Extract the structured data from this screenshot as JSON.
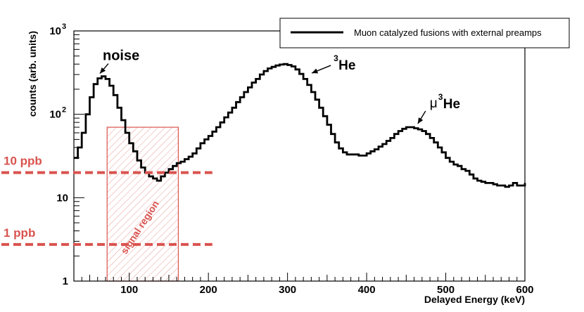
{
  "chart_data": {
    "type": "line",
    "xlabel": "Delayed Energy (keV)",
    "ylabel": "counts (arb. units)",
    "xlim": [
      30,
      600
    ],
    "ylim": [
      1,
      1000
    ],
    "yscale": "log",
    "x_ticks": [
      100,
      200,
      300,
      400,
      500,
      600
    ],
    "y_ticks": [
      {
        "value": 1,
        "label": "1"
      },
      {
        "value": 10,
        "label": "10"
      },
      {
        "value": 100,
        "label": "10",
        "sup": "2"
      },
      {
        "value": 1000,
        "label": "10",
        "sup": "3"
      }
    ],
    "legend": {
      "position": "top-right",
      "entries": [
        {
          "label": "Muon catalyzed fusions with external preamps",
          "color": "#000000"
        }
      ]
    },
    "series": [
      {
        "name": "Muon catalyzed fusions with external preamps",
        "color": "#000000",
        "style": "step",
        "points": [
          [
            30,
            30
          ],
          [
            35,
            40
          ],
          [
            40,
            60
          ],
          [
            45,
            100
          ],
          [
            50,
            160
          ],
          [
            55,
            230
          ],
          [
            60,
            270
          ],
          [
            65,
            285
          ],
          [
            70,
            265
          ],
          [
            75,
            220
          ],
          [
            80,
            170
          ],
          [
            85,
            120
          ],
          [
            90,
            85
          ],
          [
            95,
            60
          ],
          [
            100,
            45
          ],
          [
            105,
            36
          ],
          [
            110,
            28
          ],
          [
            115,
            23
          ],
          [
            120,
            20
          ],
          [
            125,
            18
          ],
          [
            130,
            17
          ],
          [
            135,
            16
          ],
          [
            140,
            18
          ],
          [
            145,
            20
          ],
          [
            150,
            22
          ],
          [
            155,
            24
          ],
          [
            160,
            26
          ],
          [
            165,
            27
          ],
          [
            170,
            29
          ],
          [
            175,
            31
          ],
          [
            180,
            34
          ],
          [
            185,
            39
          ],
          [
            190,
            45
          ],
          [
            195,
            50
          ],
          [
            200,
            55
          ],
          [
            205,
            62
          ],
          [
            210,
            70
          ],
          [
            215,
            80
          ],
          [
            220,
            92
          ],
          [
            225,
            105
          ],
          [
            230,
            120
          ],
          [
            235,
            140
          ],
          [
            240,
            160
          ],
          [
            245,
            185
          ],
          [
            250,
            210
          ],
          [
            255,
            240
          ],
          [
            260,
            265
          ],
          [
            265,
            300
          ],
          [
            270,
            330
          ],
          [
            275,
            355
          ],
          [
            280,
            370
          ],
          [
            285,
            385
          ],
          [
            290,
            395
          ],
          [
            295,
            400
          ],
          [
            300,
            390
          ],
          [
            305,
            375
          ],
          [
            310,
            345
          ],
          [
            315,
            305
          ],
          [
            320,
            265
          ],
          [
            325,
            225
          ],
          [
            330,
            185
          ],
          [
            335,
            150
          ],
          [
            340,
            120
          ],
          [
            345,
            95
          ],
          [
            350,
            75
          ],
          [
            355,
            58
          ],
          [
            360,
            46
          ],
          [
            365,
            39
          ],
          [
            370,
            35
          ],
          [
            375,
            33
          ],
          [
            380,
            33
          ],
          [
            385,
            33
          ],
          [
            390,
            32
          ],
          [
            395,
            32
          ],
          [
            400,
            34
          ],
          [
            405,
            36
          ],
          [
            410,
            38
          ],
          [
            415,
            41
          ],
          [
            420,
            44
          ],
          [
            425,
            48
          ],
          [
            430,
            52
          ],
          [
            435,
            58
          ],
          [
            440,
            63
          ],
          [
            445,
            67
          ],
          [
            450,
            70
          ],
          [
            455,
            70
          ],
          [
            460,
            68
          ],
          [
            465,
            66
          ],
          [
            470,
            63
          ],
          [
            475,
            58
          ],
          [
            480,
            52
          ],
          [
            485,
            46
          ],
          [
            490,
            40
          ],
          [
            495,
            35
          ],
          [
            500,
            30
          ],
          [
            505,
            27
          ],
          [
            510,
            25
          ],
          [
            515,
            24
          ],
          [
            520,
            22
          ],
          [
            525,
            21
          ],
          [
            530,
            19
          ],
          [
            535,
            17
          ],
          [
            540,
            16
          ],
          [
            545,
            15.5
          ],
          [
            550,
            15
          ],
          [
            555,
            15
          ],
          [
            560,
            14.5
          ],
          [
            565,
            14
          ],
          [
            570,
            14
          ],
          [
            575,
            13.5
          ],
          [
            580,
            14
          ],
          [
            585,
            15
          ],
          [
            590,
            14
          ],
          [
            595,
            14
          ],
          [
            600,
            15
          ]
        ]
      }
    ],
    "signal_region": {
      "x": [
        72,
        162
      ],
      "y": [
        1,
        70
      ],
      "label": "signal region",
      "color": "#d9534f"
    },
    "reference_lines": [
      {
        "label": "10 ppb",
        "y": 20,
        "x_end": 205,
        "color": "#d9534f"
      },
      {
        "label": "1 ppb",
        "y": 2.75,
        "x_end": 205,
        "color": "#d9534f"
      }
    ],
    "annotations": [
      {
        "label": "noise",
        "arrow_x": 62,
        "arrow_y": 280
      },
      {
        "label": "He",
        "sup": "3",
        "arrow_x": 328,
        "arrow_y": 300
      },
      {
        "label": "He",
        "greek": "μ",
        "sup": "3",
        "arrow_x": 462,
        "arrow_y": 70
      }
    ]
  }
}
